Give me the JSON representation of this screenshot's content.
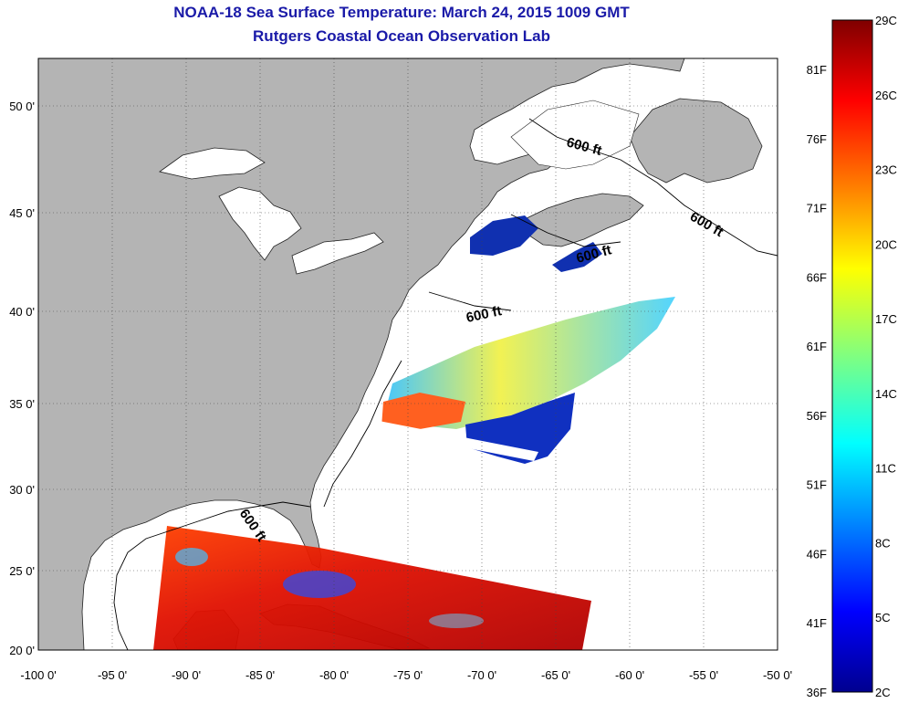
{
  "title": "NOAA-18 Sea Surface Temperature:  March 24, 2015 1009 GMT",
  "subtitle": "Rutgers Coastal Ocean Observation Lab",
  "lat_ticks": [
    "50 0'",
    "45 0'",
    "40 0'",
    "35 0'",
    "30 0'",
    "25 0'",
    "20 0'"
  ],
  "lon_ticks": [
    "-100 0'",
    "-95 0'",
    "-90 0'",
    "-85 0'",
    "-80 0'",
    "-75 0'",
    "-70 0'",
    "-65 0'",
    "-60 0'",
    "-55 0'",
    "-50 0'"
  ],
  "isobath_label": "600 ft",
  "colorbar": {
    "celsius": [
      "29C",
      "26C",
      "23C",
      "20C",
      "17C",
      "14C",
      "11C",
      "8C",
      "5C",
      "2C"
    ],
    "fahrenheit": [
      "81F",
      "76F",
      "71F",
      "66F",
      "61F",
      "56F",
      "51F",
      "46F",
      "41F",
      "36F"
    ],
    "colors": [
      "#7f0000",
      "#ff0000",
      "#ff8000",
      "#ffff00",
      "#80ff80",
      "#00ffff",
      "#0080ff",
      "#0000ff",
      "#00008f"
    ]
  },
  "colors": {
    "land": "#b4b4b4",
    "title": "#1a1aa8",
    "ocean": "#ffffff"
  }
}
